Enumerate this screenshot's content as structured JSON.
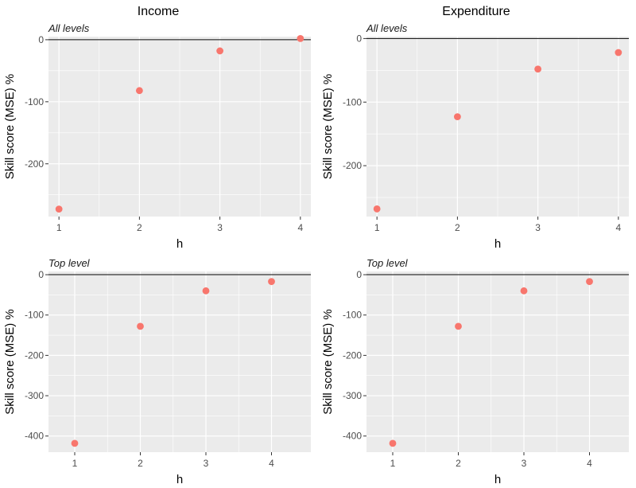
{
  "column_titles": [
    "Income",
    "Expenditure"
  ],
  "chart_data": [
    {
      "type": "scatter",
      "column": "Income",
      "subtitle": "All levels",
      "xlabel": "h",
      "ylabel": "Skill score (MSE) %",
      "x": [
        1,
        2,
        3,
        4
      ],
      "y": [
        -273,
        -82,
        -18,
        2
      ],
      "xlim": [
        0.87,
        4.13
      ],
      "ylim": [
        -285,
        5
      ],
      "xticks": [
        1,
        2,
        3,
        4
      ],
      "yticks": [
        -200,
        -100,
        0
      ],
      "reference_line": 0,
      "point_color": "#F8766D",
      "panel_bg": "#EBEBEB",
      "grid": true
    },
    {
      "type": "scatter",
      "column": "Expenditure",
      "subtitle": "All levels",
      "xlabel": "h",
      "ylabel": "Skill score (MSE) %",
      "x": [
        1,
        2,
        3,
        4
      ],
      "y": [
        -268,
        -123,
        -48,
        -22
      ],
      "xlim": [
        0.87,
        4.13
      ],
      "ylim": [
        -280,
        3
      ],
      "xticks": [
        1,
        2,
        3,
        4
      ],
      "yticks": [
        -200,
        -100,
        0
      ],
      "reference_line": 0,
      "point_color": "#F8766D",
      "panel_bg": "#EBEBEB",
      "grid": true
    },
    {
      "type": "scatter",
      "column": "Income",
      "subtitle": "Top level",
      "xlabel": "h",
      "ylabel": "Skill score (MSE) %",
      "x": [
        1,
        2,
        3,
        4
      ],
      "y": [
        -418,
        -128,
        -40,
        -17
      ],
      "xlim": [
        0.6,
        4.6
      ],
      "ylim": [
        -440,
        8
      ],
      "xticks": [
        1,
        2,
        3,
        4
      ],
      "yticks": [
        -400,
        -300,
        -200,
        -100,
        0
      ],
      "reference_line": 0,
      "point_color": "#F8766D",
      "panel_bg": "#EBEBEB",
      "grid": true
    },
    {
      "type": "scatter",
      "column": "Expenditure",
      "subtitle": "Top level",
      "xlabel": "h",
      "ylabel": "Skill score (MSE) %",
      "x": [
        1,
        2,
        3,
        4
      ],
      "y": [
        -418,
        -128,
        -40,
        -17
      ],
      "xlim": [
        0.6,
        4.6
      ],
      "ylim": [
        -440,
        8
      ],
      "xticks": [
        1,
        2,
        3,
        4
      ],
      "yticks": [
        -400,
        -300,
        -200,
        -100,
        0
      ],
      "reference_line": 0,
      "point_color": "#F8766D",
      "panel_bg": "#EBEBEB",
      "grid": true
    }
  ]
}
